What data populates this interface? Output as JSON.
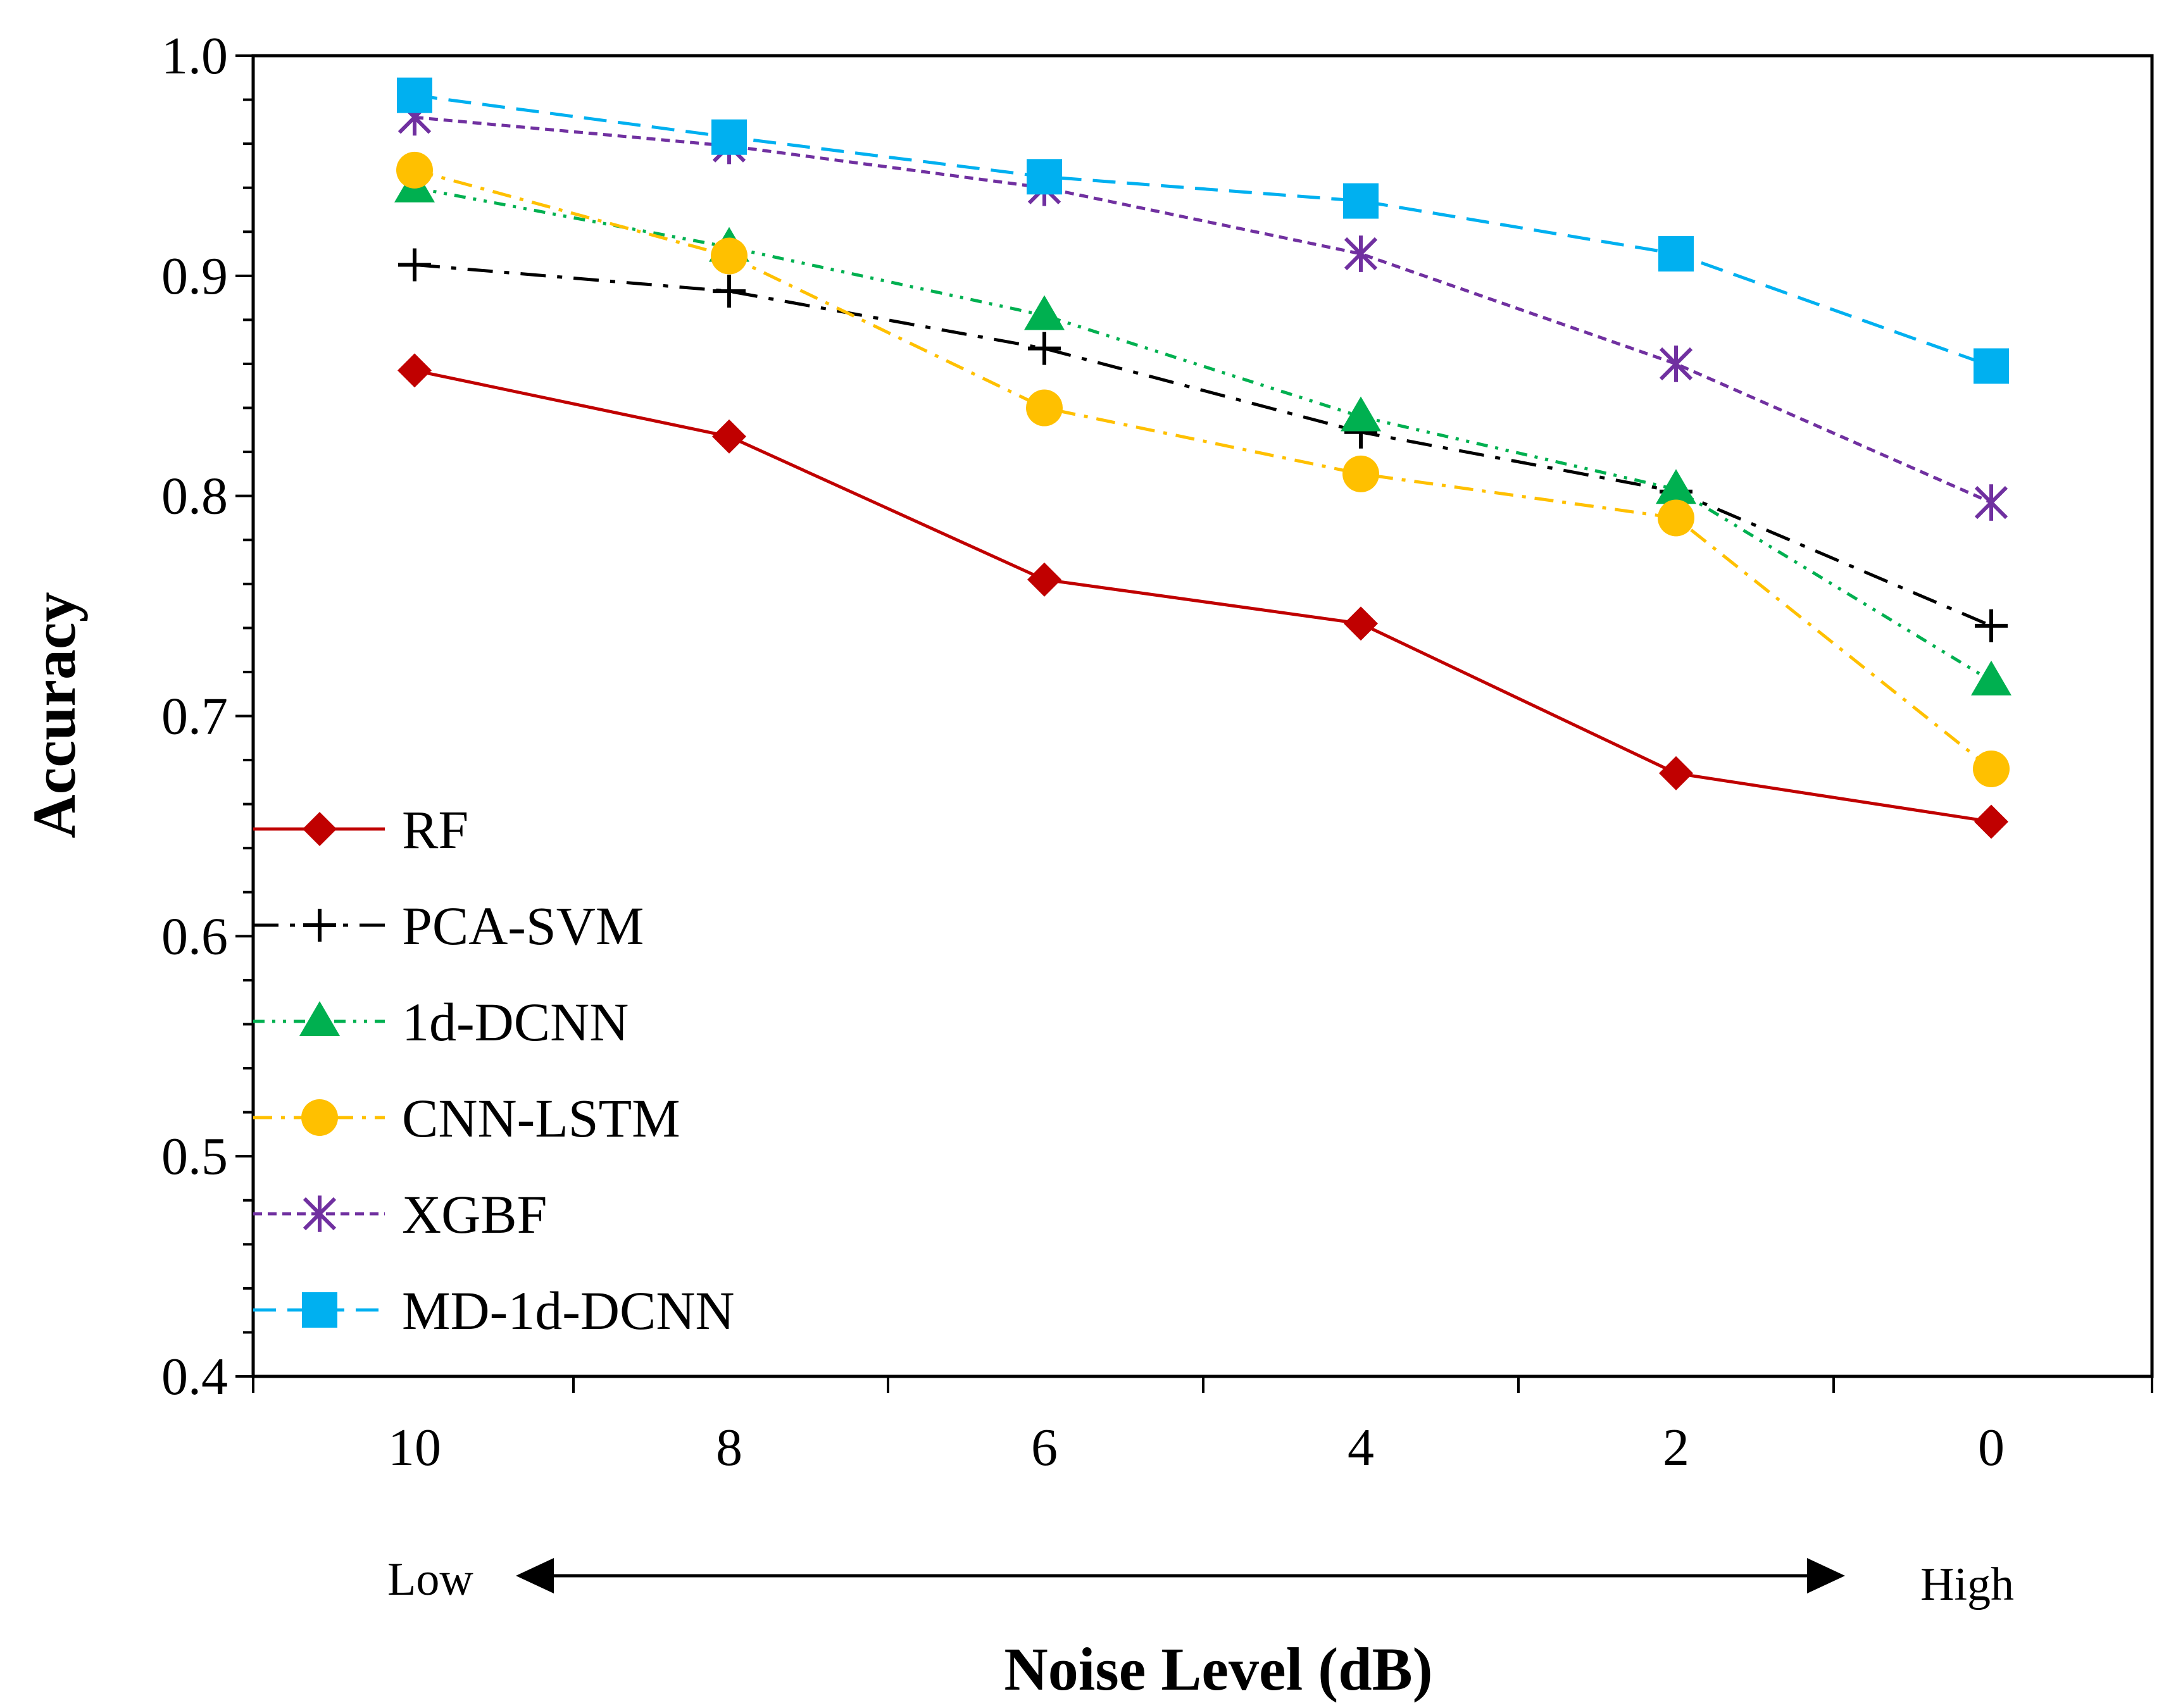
{
  "chart_data": {
    "type": "line",
    "title": "",
    "xlabel": "Noise Level (dB)",
    "ylabel": "Accuracy",
    "categories": [
      "10",
      "8",
      "6",
      "4",
      "2",
      "0"
    ],
    "ylim": [
      0.4,
      1.0
    ],
    "y_ticks": [
      "0.4",
      "0.5",
      "0.6",
      "0.7",
      "0.8",
      "0.9",
      "1.0"
    ],
    "range_annotation": {
      "low": "Low",
      "high": "High"
    },
    "legend_position": "left",
    "grid": false,
    "series": [
      {
        "name": "RF",
        "color": "#C00000",
        "marker": "diamond",
        "dash": "solid",
        "values": [
          0.857,
          0.827,
          0.762,
          0.742,
          0.674,
          0.652
        ]
      },
      {
        "name": "PCA-SVM",
        "color": "#000000",
        "marker": "plus",
        "dash": "longdashdot",
        "values": [
          0.905,
          0.893,
          0.867,
          0.829,
          0.802,
          0.741
        ]
      },
      {
        "name": "1d-DCNN",
        "color": "#00B050",
        "marker": "triangle",
        "dash": "dashdotdot",
        "values": [
          0.94,
          0.913,
          0.882,
          0.836,
          0.803,
          0.716
        ]
      },
      {
        "name": "CNN-LSTM",
        "color": "#FFC000",
        "marker": "circle",
        "dash": "dashdot",
        "values": [
          0.948,
          0.909,
          0.84,
          0.81,
          0.79,
          0.676
        ]
      },
      {
        "name": "XGBF",
        "color": "#7030A0",
        "marker": "star",
        "dash": "dash",
        "values": [
          0.972,
          0.959,
          0.94,
          0.91,
          0.86,
          0.797
        ]
      },
      {
        "name": "MD-1d-DCNN",
        "color": "#00B0F0",
        "marker": "square",
        "dash": "longdash",
        "values": [
          0.982,
          0.963,
          0.945,
          0.934,
          0.91,
          0.859
        ]
      }
    ]
  }
}
